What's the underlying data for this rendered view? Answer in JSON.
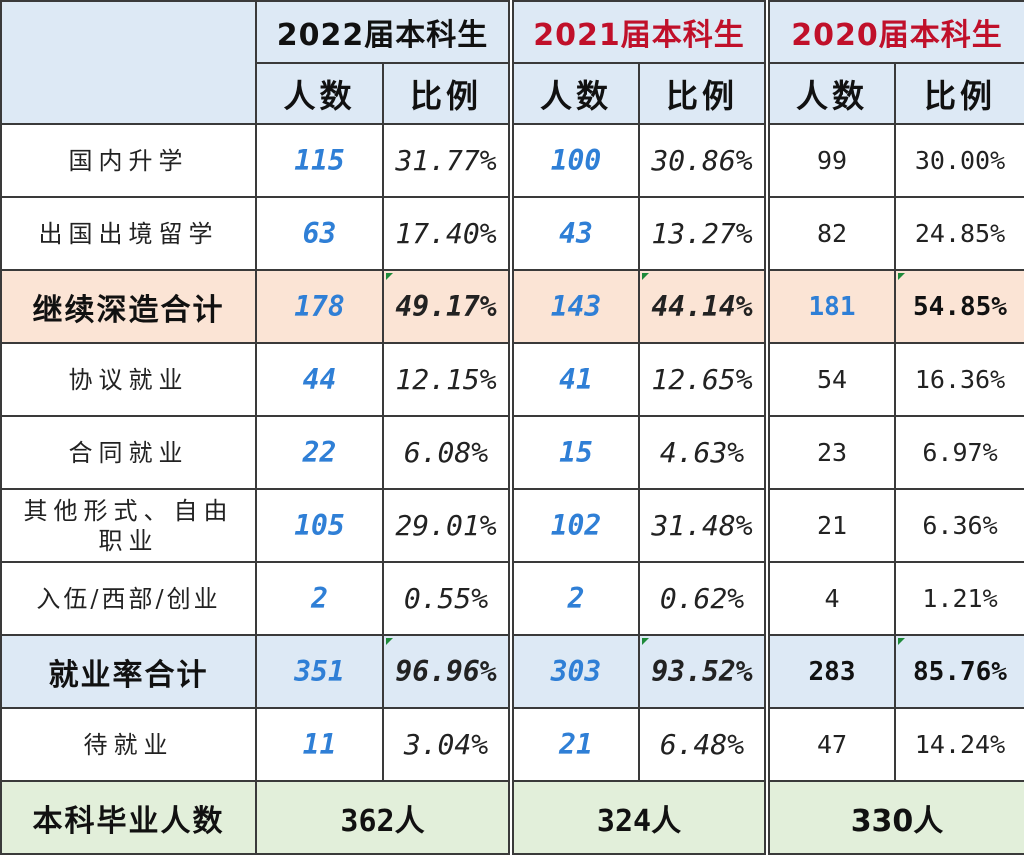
{
  "header": {
    "years": [
      {
        "label": "2022届本科生",
        "color": "#111111"
      },
      {
        "label": "2021届本科生",
        "color": "#c0102a"
      },
      {
        "label": "2020届本科生",
        "color": "#c0102a"
      }
    ],
    "col_count": "人数",
    "col_ratio": "比例"
  },
  "rows": [
    {
      "label": "国内升学",
      "v": [
        [
          "115",
          "31.77%"
        ],
        [
          "100",
          "30.86%"
        ],
        [
          "99",
          "30.00%"
        ]
      ]
    },
    {
      "label": "出国出境留学",
      "v": [
        [
          "63",
          "17.40%"
        ],
        [
          "43",
          "13.27%"
        ],
        [
          "82",
          "24.85%"
        ]
      ]
    },
    {
      "label": "继续深造合计",
      "v": [
        [
          "178",
          "49.17%"
        ],
        [
          "143",
          "44.14%"
        ],
        [
          "181",
          "54.85%"
        ]
      ]
    },
    {
      "label": "协议就业",
      "v": [
        [
          "44",
          "12.15%"
        ],
        [
          "41",
          "12.65%"
        ],
        [
          "54",
          "16.36%"
        ]
      ]
    },
    {
      "label": "合同就业",
      "v": [
        [
          "22",
          "6.08%"
        ],
        [
          "15",
          "4.63%"
        ],
        [
          "23",
          "6.97%"
        ]
      ]
    },
    {
      "label": "其他形式、自由职业",
      "v": [
        [
          "105",
          "29.01%"
        ],
        [
          "102",
          "31.48%"
        ],
        [
          "21",
          "6.36%"
        ]
      ]
    },
    {
      "label": "入伍/西部/创业",
      "v": [
        [
          "2",
          "0.55%"
        ],
        [
          "2",
          "0.62%"
        ],
        [
          "4",
          "1.21%"
        ]
      ]
    },
    {
      "label": "就业率合计",
      "v": [
        [
          "351",
          "96.96%"
        ],
        [
          "303",
          "93.52%"
        ],
        [
          "283",
          "85.76%"
        ]
      ]
    },
    {
      "label": "待就业",
      "v": [
        [
          "11",
          "3.04%"
        ],
        [
          "21",
          "6.48%"
        ],
        [
          "47",
          "14.24%"
        ]
      ]
    }
  ],
  "total": {
    "label": "本科毕业人数",
    "values": [
      "362人",
      "324人",
      "330人"
    ]
  },
  "colors": {
    "header_bg": "#dde9f5",
    "continue_row_bg": "#fbe4d5",
    "employment_row_bg": "#dde9f5",
    "total_row_bg": "#e2efda",
    "blue_number": "#2f7fd6",
    "red_year": "#c0102a"
  }
}
